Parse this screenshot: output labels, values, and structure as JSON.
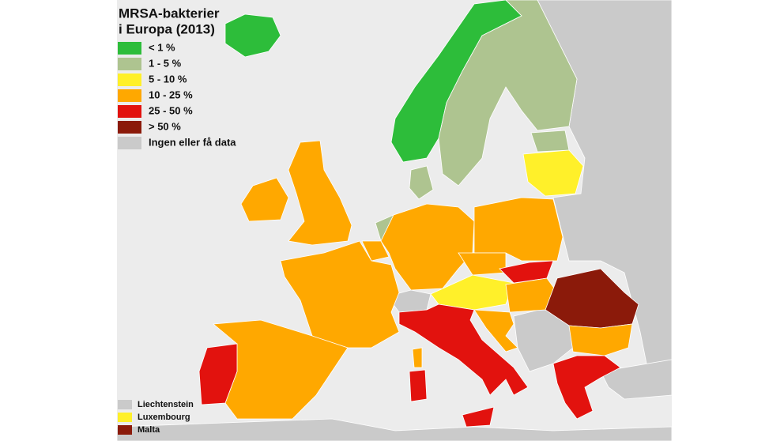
{
  "title": [
    "MRSA-bakterier",
    "i Europa (2013)"
  ],
  "legend": [
    {
      "label": "< 1 %",
      "color": "#2dbd3a"
    },
    {
      "label": "1 - 5 %",
      "color": "#aec490"
    },
    {
      "label": "5 - 10 %",
      "color": "#fff02a"
    },
    {
      "label": "10 - 25 %",
      "color": "#ffa800"
    },
    {
      "label": "25 - 50 %",
      "color": "#e2120e"
    },
    {
      "label": "> 50 %",
      "color": "#8b1a0a"
    },
    {
      "label": "Ingen eller få data",
      "color": "#cacaca"
    }
  ],
  "small_countries": [
    {
      "label": "Liechtenstein",
      "color": "#cacaca"
    },
    {
      "label": "Luxembourg",
      "color": "#fff02a"
    },
    {
      "label": "Malta",
      "color": "#8b1a0a"
    }
  ]
}
